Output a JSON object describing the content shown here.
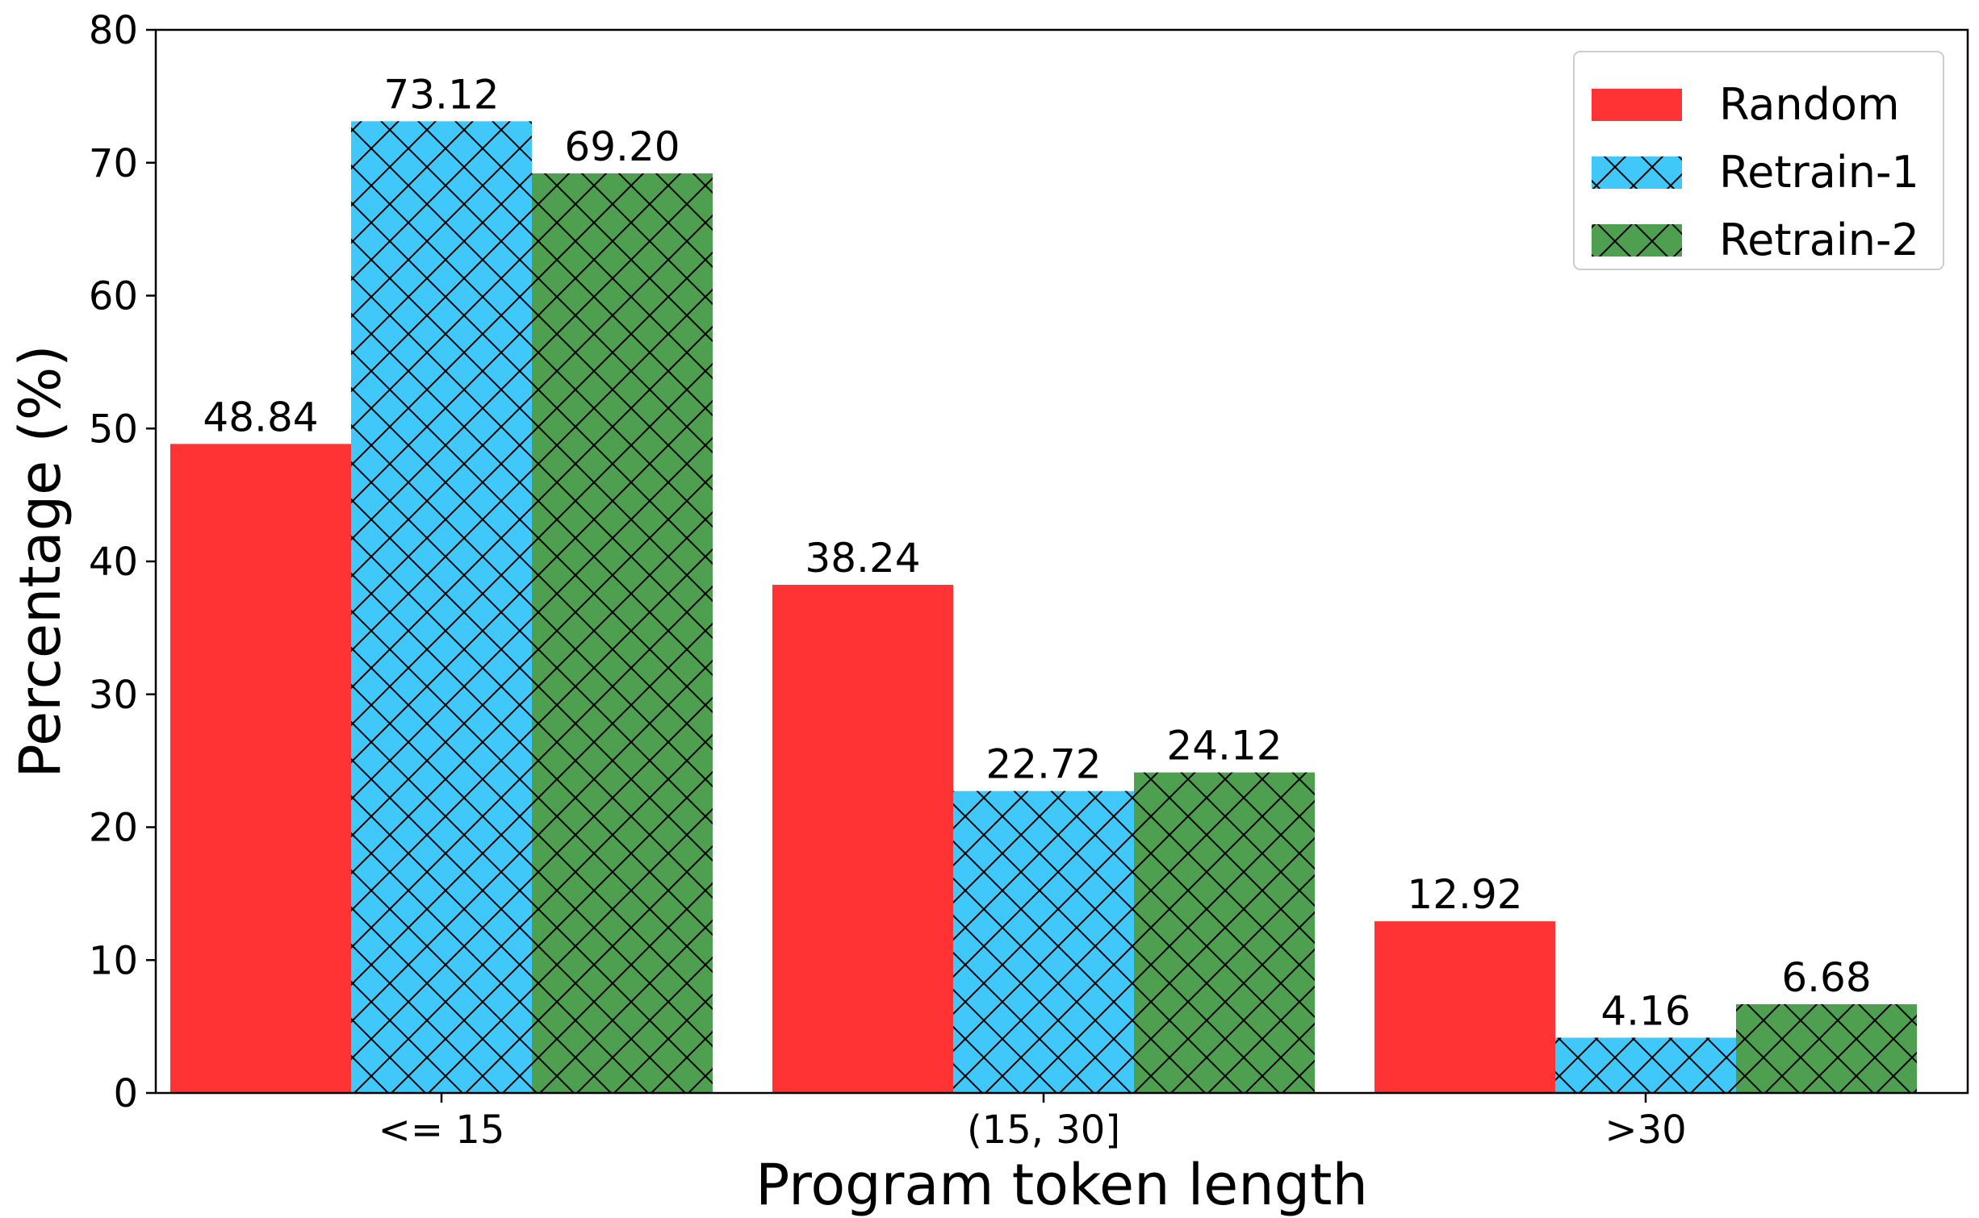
{
  "chart_data": {
    "type": "bar",
    "title": "",
    "xlabel": "Program token length",
    "ylabel": "Percentage (%)",
    "categories": [
      "<= 15",
      "(15, 30]",
      ">30"
    ],
    "ylim": [
      0,
      80
    ],
    "yticks": [
      0,
      10,
      20,
      30,
      40,
      50,
      60,
      70,
      80
    ],
    "grid": false,
    "legend_position": "top-right",
    "series": [
      {
        "name": "Random",
        "values": [
          48.84,
          38.24,
          12.92
        ],
        "labels": [
          "48.84",
          "38.24",
          "12.92"
        ],
        "color": "#ff3333",
        "hatch": "none"
      },
      {
        "name": "Retrain-1",
        "values": [
          73.12,
          22.72,
          4.16
        ],
        "labels": [
          "73.12",
          "22.72",
          "4.16"
        ],
        "color": "#3fc8f9",
        "hatch": "crosshatch"
      },
      {
        "name": "Retrain-2",
        "values": [
          69.2,
          24.12,
          6.68
        ],
        "labels": [
          "69.20",
          "24.12",
          "6.68"
        ],
        "color": "#4e9f50",
        "hatch": "crosshatch"
      }
    ]
  }
}
